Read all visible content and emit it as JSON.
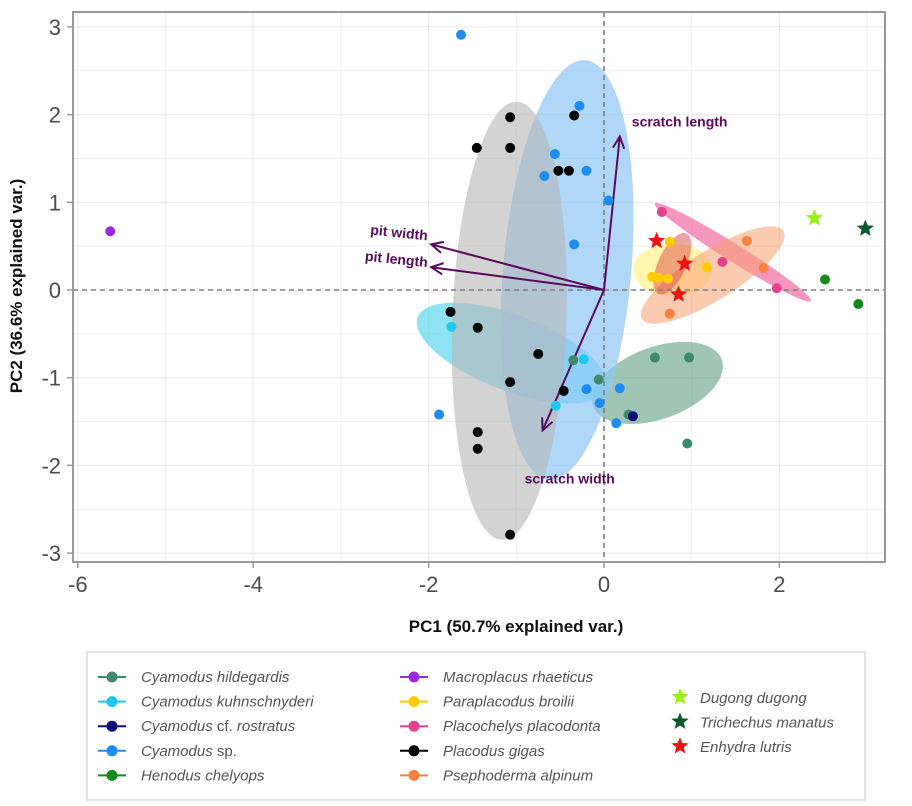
{
  "chart_data": {
    "type": "scatter",
    "title": "",
    "xlabel": "PC1 (50.7% explained var.)",
    "ylabel": "PC2  (36.6% explained var.)",
    "xlim": [
      -6.1,
      3.3
    ],
    "ylim": [
      -3.1,
      3.15
    ],
    "xticks": [
      -6,
      -4,
      -2,
      0,
      2
    ],
    "yticks": [
      -3,
      -2,
      -1,
      0,
      1,
      2,
      3
    ],
    "grid": true,
    "reference_lines": {
      "x": 0,
      "y": 0,
      "style": "dashed"
    },
    "legend_placement": "bottom",
    "series": [
      {
        "name": "Cyamodus hildegardis",
        "marker": "circle",
        "color": "#3f8a6f",
        "points": [
          [
            -0.35,
            -0.8
          ],
          [
            0.58,
            -0.77
          ],
          [
            0.97,
            -0.77
          ],
          [
            -0.06,
            -1.02
          ],
          [
            0.28,
            -1.42
          ],
          [
            0.95,
            -1.75
          ]
        ],
        "ellipse": {
          "cx": 0.61,
          "cy": -1.06,
          "rx": 0.78,
          "ry": 0.41,
          "angle": -20,
          "fill": "#5f9e86",
          "opacity": 0.6
        }
      },
      {
        "name": "Cyamodus kuhnschnyderi",
        "marker": "circle",
        "color": "#1ec8f0",
        "points": [
          [
            -1.74,
            -0.42
          ],
          [
            -0.23,
            -0.79
          ],
          [
            -0.55,
            -1.32
          ]
        ],
        "ellipse": {
          "cx": -1.05,
          "cy": -0.72,
          "rx": 1.15,
          "ry": 0.43,
          "angle": 21,
          "fill": "#5fd8ee",
          "opacity": 0.7
        }
      },
      {
        "name": "Cyamodus cf. rostratus",
        "marker": "circle",
        "color": "#0b0b7a",
        "points": [
          [
            0.33,
            -1.44
          ]
        ]
      },
      {
        "name": "Cyamodus sp.",
        "marker": "circle",
        "color": "#1e8cf0",
        "points": [
          [
            -1.63,
            2.91
          ],
          [
            -0.28,
            2.1
          ],
          [
            -0.56,
            1.55
          ],
          [
            -0.2,
            1.36
          ],
          [
            -0.68,
            1.3
          ],
          [
            0.05,
            1.02
          ],
          [
            -0.34,
            0.52
          ],
          [
            -0.2,
            -1.13
          ],
          [
            -0.05,
            -1.29
          ],
          [
            0.18,
            -1.12
          ],
          [
            0.14,
            -1.52
          ],
          [
            -1.88,
            -1.42
          ]
        ],
        "ellipse": {
          "cx": -0.42,
          "cy": 0.23,
          "rx": 0.73,
          "ry": 2.4,
          "angle": 5,
          "fill": "#8fc6f5",
          "opacity": 0.7
        }
      },
      {
        "name": "Henodus chelyops",
        "marker": "circle",
        "color": "#138a1c",
        "points": [
          [
            2.52,
            0.12
          ],
          [
            2.9,
            -0.16
          ]
        ]
      },
      {
        "name": "Macroplacus rhaeticus",
        "marker": "circle",
        "color": "#9b2be0",
        "points": [
          [
            -5.63,
            0.67
          ]
        ]
      },
      {
        "name": "Paraplacodus broilii",
        "marker": "circle",
        "color": "#ffcc00",
        "points": [
          [
            0.62,
            0.14
          ],
          [
            0.73,
            0.13
          ],
          [
            0.75,
            0.55
          ],
          [
            1.17,
            0.26
          ],
          [
            0.55,
            0.15
          ]
        ],
        "ellipse": {
          "cx": 0.78,
          "cy": 0.23,
          "rx": 0.45,
          "ry": 0.3,
          "angle": 0,
          "fill": "#fff27a",
          "opacity": 0.6
        }
      },
      {
        "name": "Placochelys placodonta",
        "marker": "circle",
        "color": "#e3428c",
        "points": [
          [
            0.66,
            0.89
          ],
          [
            1.35,
            0.32
          ],
          [
            1.97,
            0.02
          ]
        ],
        "ellipse": {
          "cx": 1.47,
          "cy": 0.43,
          "rx": 1.05,
          "ry": 0.1,
          "angle": 32,
          "fill": "#f274a8",
          "opacity": 0.75
        }
      },
      {
        "name": "Placodus gigas",
        "marker": "circle",
        "color": "#000000",
        "points": [
          [
            -1.07,
            1.97
          ],
          [
            -0.34,
            1.99
          ],
          [
            -1.45,
            1.62
          ],
          [
            -1.07,
            1.62
          ],
          [
            -0.52,
            1.36
          ],
          [
            -0.4,
            1.36
          ],
          [
            -1.75,
            -0.25
          ],
          [
            -1.44,
            -0.43
          ],
          [
            -0.75,
            -0.73
          ],
          [
            -1.07,
            -1.05
          ],
          [
            -0.46,
            -1.15
          ],
          [
            -1.44,
            -1.62
          ],
          [
            -1.44,
            -1.81
          ],
          [
            -1.07,
            -2.79
          ]
        ],
        "ellipse": {
          "cx": -1.08,
          "cy": -0.35,
          "rx": 0.65,
          "ry": 2.5,
          "angle": 2,
          "fill": "#b5b5b5",
          "opacity": 0.6
        }
      },
      {
        "name": "Psephoderma alpinum",
        "marker": "circle",
        "color": "#f5823f",
        "points": [
          [
            1.63,
            0.56
          ],
          [
            1.82,
            0.25
          ],
          [
            0.75,
            -0.27
          ]
        ],
        "ellipse": {
          "cx": 1.24,
          "cy": 0.17,
          "rx": 0.95,
          "ry": 0.28,
          "angle": -32,
          "fill": "#f7a070",
          "opacity": 0.55
        }
      },
      {
        "name": "Dugong dugong",
        "marker": "star",
        "color": "#9cf01e",
        "points": [
          [
            2.4,
            0.82
          ]
        ]
      },
      {
        "name": "Trichechus manatus",
        "marker": "star",
        "color": "#0a5a2c",
        "points": [
          [
            2.98,
            0.7
          ]
        ]
      },
      {
        "name": "Enhydra lutris",
        "marker": "star",
        "color": "#ee1111",
        "points": [
          [
            0.6,
            0.56
          ],
          [
            0.92,
            0.3
          ],
          [
            0.85,
            -0.05
          ]
        ],
        "ellipse": {
          "cx": 0.78,
          "cy": 0.3,
          "rx": 0.38,
          "ry": 0.16,
          "angle": -65,
          "fill": "#d83a3a",
          "opacity": 0.45
        }
      }
    ],
    "loadings": [
      {
        "label": "scratch length",
        "x": 0.18,
        "y": 1.75
      },
      {
        "label": "pit width",
        "x": -1.97,
        "y": 0.52
      },
      {
        "label": "pit length",
        "x": -1.97,
        "y": 0.26
      },
      {
        "label": "scratch width",
        "x": -0.7,
        "y": -1.6
      }
    ],
    "legend": {
      "columns": [
        [
          {
            "label": "Cyamodus hildegardis",
            "roman_suffix": ""
          },
          {
            "label": "Cyamodus kuhnschnyderi",
            "roman_suffix": ""
          },
          {
            "label": "Cyamodus",
            "roman_suffix": " cf. ",
            "label2": "rostratus"
          },
          {
            "label": "Cyamodus",
            "roman_suffix": " sp."
          },
          {
            "label": "Henodus chelyops",
            "roman_suffix": ""
          }
        ],
        [
          {
            "label": "Macroplacus rhaeticus"
          },
          {
            "label": "Paraplacodus broilii"
          },
          {
            "label": "Placochelys placodonta"
          },
          {
            "label": "Placodus gigas"
          },
          {
            "label": "Psephoderma alpinum"
          }
        ],
        [
          {
            "label": "Dugong dugong"
          },
          {
            "label": "Trichechus manatus"
          },
          {
            "label": "Enhydra lutris"
          }
        ]
      ]
    },
    "colors": {
      "loading_arrow": "#5a0a5a",
      "grid": "#ececec",
      "panel_border": "#999999",
      "reference_line": "#7f7f7f"
    }
  }
}
